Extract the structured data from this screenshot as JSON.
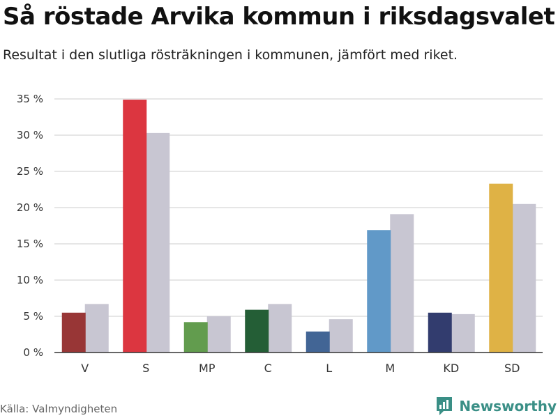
{
  "header": {
    "title": "Så röstade Arvika kommun i riksdagsvalet",
    "subtitle": "Resultat i den slutliga rösträkningen i kommunen, jämfört med riket."
  },
  "footer": {
    "source": "Källa: Valmyndigheten",
    "brand": "Newsworthy",
    "brand_icon": "chart-speech-bubble-icon"
  },
  "colors": {
    "national_bar": "#c8c6d2",
    "grid": "#dddddd",
    "axis": "#333333",
    "brand": "#3a8f86"
  },
  "chart_data": {
    "type": "bar",
    "categories": [
      "V",
      "S",
      "MP",
      "C",
      "L",
      "M",
      "KD",
      "SD"
    ],
    "series": [
      {
        "values": [
          5.5,
          34.9,
          4.2,
          5.9,
          2.9,
          16.9,
          5.5,
          23.3
        ],
        "colors": [
          "#983636",
          "#dc3640",
          "#629c4e",
          "#245e36",
          "#426595",
          "#6199c8",
          "#323c6e",
          "#dfb245"
        ]
      },
      {
        "values": [
          6.7,
          30.3,
          5.0,
          6.7,
          4.6,
          19.1,
          5.3,
          20.5
        ],
        "color": "#c8c6d2"
      }
    ],
    "ylim": [
      0,
      35
    ],
    "yticks": [
      0,
      5,
      10,
      15,
      20,
      25,
      30,
      35
    ],
    "ytick_labels": [
      "0 %",
      "5 %",
      "10 %",
      "15 %",
      "20 %",
      "25 %",
      "30 %",
      "35 %"
    ],
    "grid": true,
    "legend": "none"
  }
}
